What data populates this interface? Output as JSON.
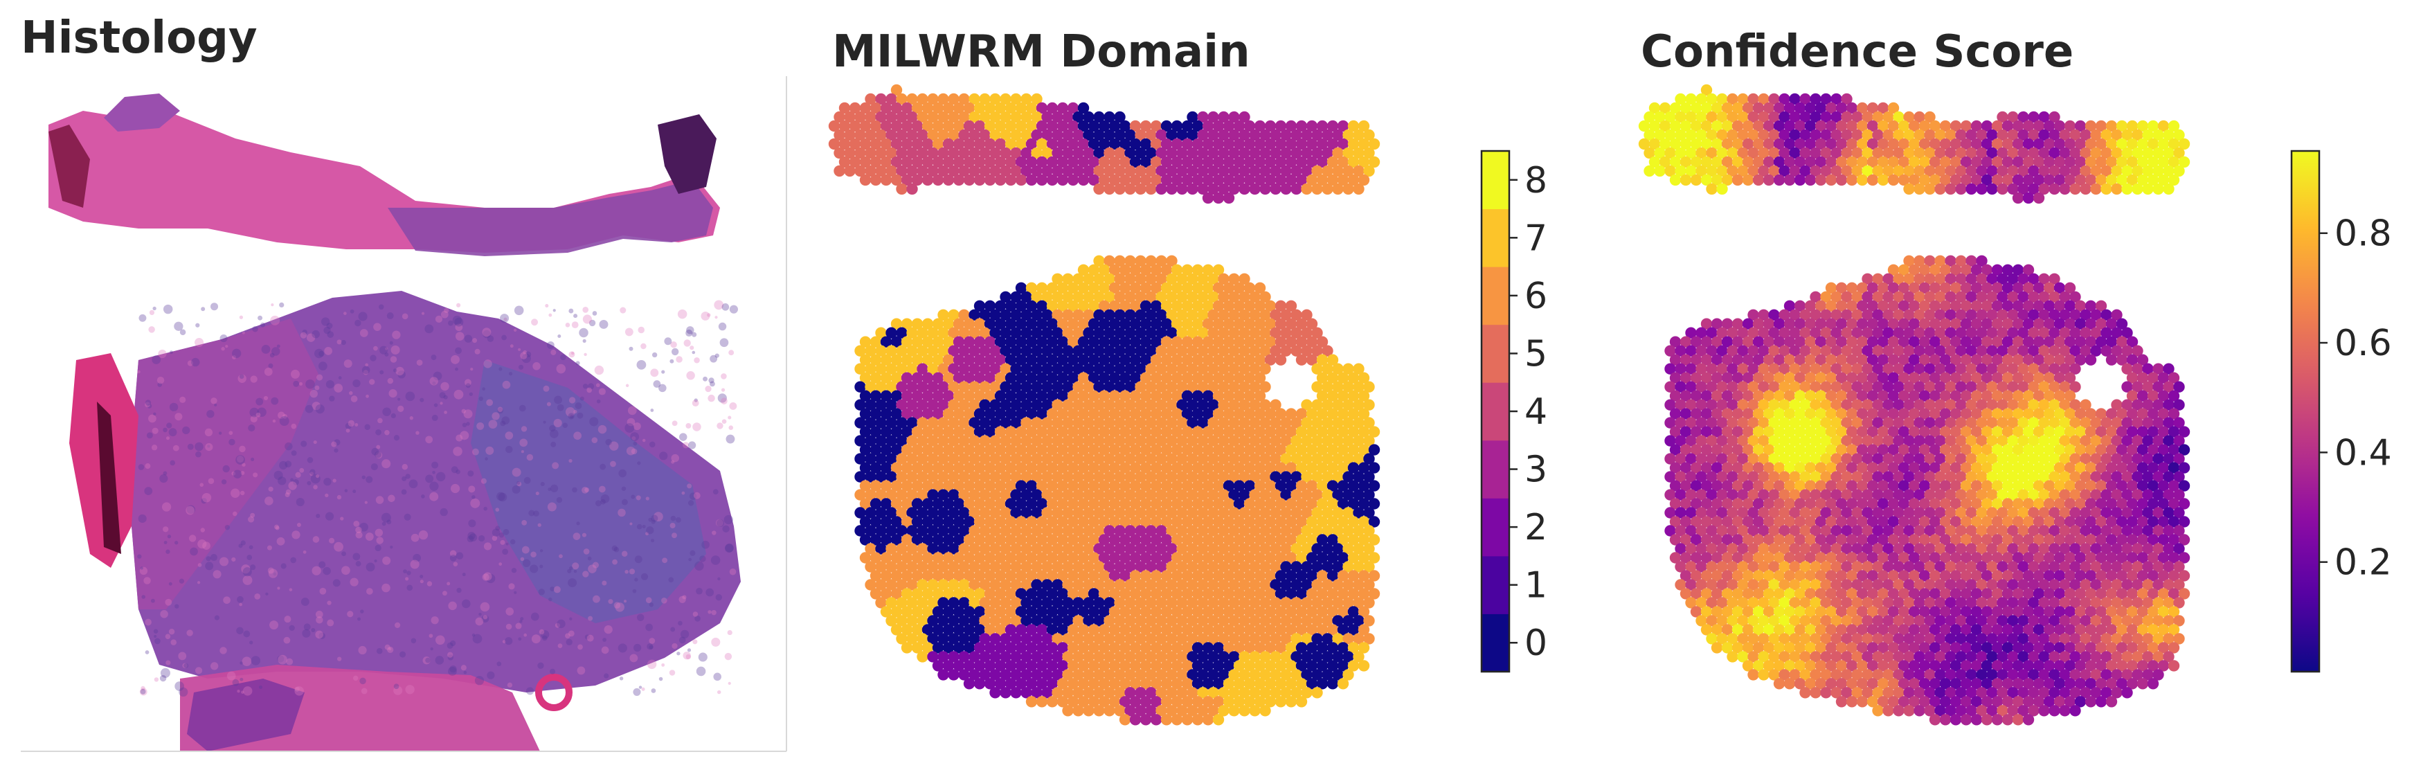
{
  "panels": {
    "histology": {
      "title": "Histology"
    },
    "domain": {
      "title": "MILWRM Domain"
    },
    "confidence": {
      "title": "Confidence Score"
    }
  },
  "chart_data": [
    {
      "type": "image",
      "title": "Histology",
      "content": "H&E stained tissue section, two fragments",
      "colors": {
        "tissue_pink": "#d94fa0",
        "tissue_purple": "#8a4aa8",
        "tissue_dark": "#4a1a5a"
      }
    },
    {
      "type": "heatmap",
      "title": "MILWRM Domain",
      "colormap": "plasma",
      "discrete": true,
      "colorbar": {
        "min": -0.5,
        "max": 8.5,
        "ticks": [
          0,
          1,
          2,
          3,
          4,
          5,
          6,
          7,
          8
        ],
        "tick_labels": [
          "0",
          "1",
          "2",
          "3",
          "4",
          "5",
          "6",
          "7",
          "8"
        ]
      },
      "domain_colors": [
        "#0d0887",
        "#4c02a1",
        "#7e03a8",
        "#a92395",
        "#cc4778",
        "#e66c5c",
        "#f89540",
        "#fdc527",
        "#f0f921"
      ],
      "dominant_domains": [
        6,
        7,
        0,
        3,
        4,
        5
      ]
    },
    {
      "type": "heatmap",
      "title": "Confidence Score",
      "colormap": "plasma",
      "colorbar": {
        "min": 0.0,
        "max": 0.95,
        "ticks": [
          0.2,
          0.4,
          0.6,
          0.8
        ],
        "tick_labels": [
          "0.2",
          "0.4",
          "0.6",
          "0.8"
        ]
      }
    }
  ]
}
